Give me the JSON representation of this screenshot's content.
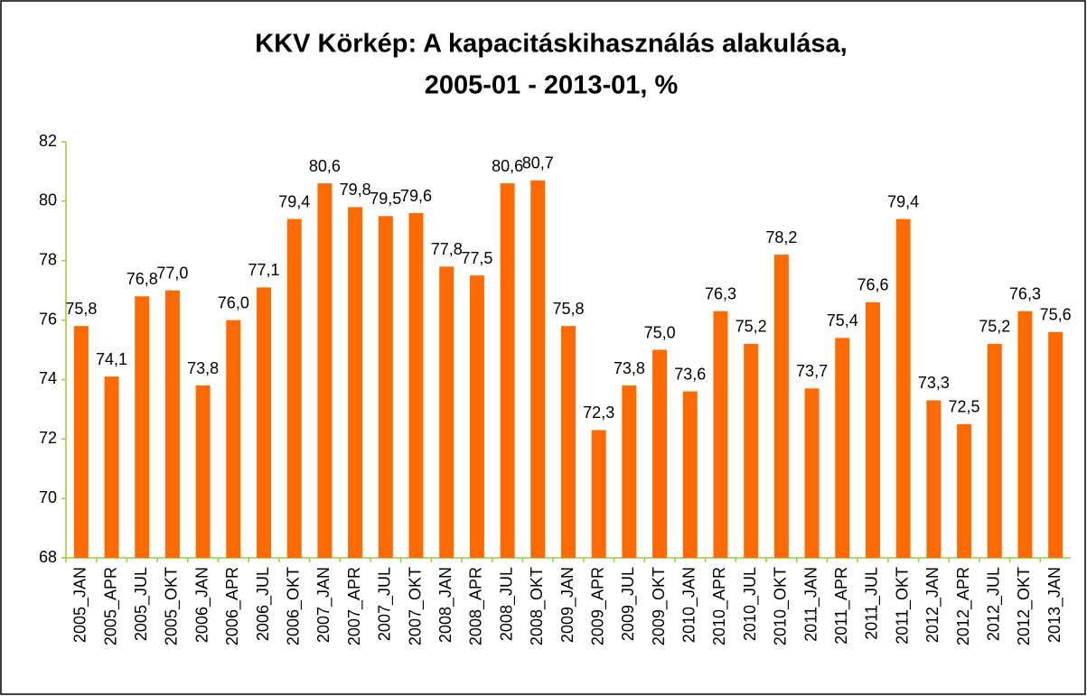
{
  "chart_data": {
    "type": "bar",
    "title": [
      "KKV Körkép: A kapacitáskihasználás alakulása,",
      "2005-01 - 2013-01, %"
    ],
    "categories": [
      "2005_JAN",
      "2005_APR",
      "2005_JUL",
      "2005_OKT",
      "2006_JAN",
      "2006_APR",
      "2006_JUL",
      "2006_OKT",
      "2007_JAN",
      "2007_APR",
      "2007_JUL",
      "2007_OKT",
      "2008_JAN",
      "2008_APR",
      "2008_JUL",
      "2008_OKT",
      "2009_JAN",
      "2009_APR",
      "2009_JUL",
      "2009_OKT",
      "2010_JAN",
      "2010_APR",
      "2010_JUL",
      "2010_OKT",
      "2011_JAN",
      "2011_APR",
      "2011_JUL",
      "2011_OKT",
      "2012_JAN",
      "2012_APR",
      "2012_JUL",
      "2012_OKT",
      "2013_JAN"
    ],
    "values": [
      75.8,
      74.1,
      76.8,
      77.0,
      73.8,
      76.0,
      77.1,
      79.4,
      80.6,
      79.8,
      79.5,
      79.6,
      77.8,
      77.5,
      80.6,
      80.7,
      75.8,
      72.3,
      73.8,
      75.0,
      73.6,
      76.3,
      75.2,
      78.2,
      73.7,
      75.4,
      76.6,
      79.4,
      73.3,
      72.5,
      75.2,
      76.3,
      75.6
    ],
    "value_labels": [
      "75,8",
      "74,1",
      "76,8",
      "77,0",
      "73,8",
      "76,0",
      "77,1",
      "79,4",
      "80,6",
      "79,8",
      "79,5",
      "79,6",
      "77,8",
      "77,5",
      "80,6",
      "80,7",
      "75,8",
      "72,3",
      "73,8",
      "75,0",
      "73,6",
      "76,3",
      "75,2",
      "78,2",
      "73,7",
      "75,4",
      "76,6",
      "79,4",
      "73,3",
      "72,5",
      "75,2",
      "76,3",
      "75,6"
    ],
    "color": "#ff6a00",
    "ylim": [
      68,
      82
    ],
    "yticks": [
      68,
      70,
      72,
      74,
      76,
      78,
      80,
      82
    ],
    "grid": false
  }
}
